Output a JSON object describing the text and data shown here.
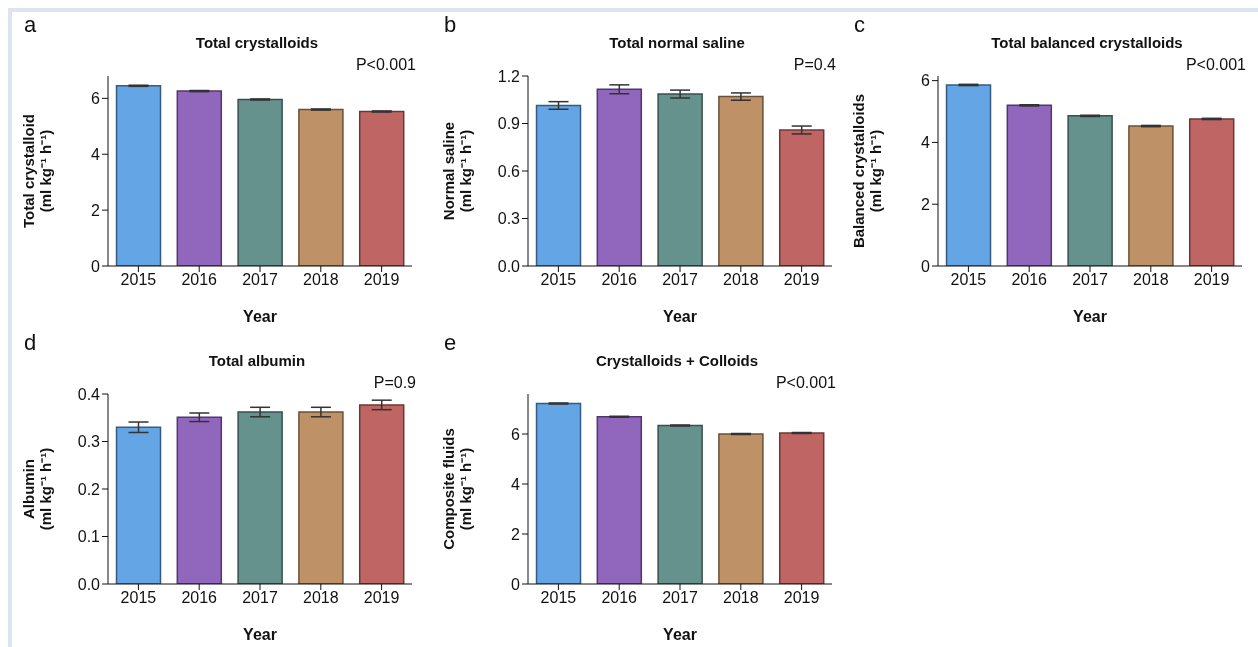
{
  "chart_data": [
    {
      "type": "bar",
      "title": "Total crystalloids",
      "xlabel": "Year",
      "ylabel": "Total crystalloid\n(ml kg⁻¹ h⁻¹)",
      "annotations": [
        "a",
        "P<0.001"
      ],
      "categories": [
        "2015",
        "2016",
        "2017",
        "2018",
        "2019"
      ],
      "values": [
        6.45,
        6.26,
        5.96,
        5.6,
        5.53
      ],
      "errors": [
        0.02,
        0.02,
        0.02,
        0.02,
        0.02
      ],
      "colors": [
        "#64a5e5",
        "#9166bd",
        "#65928c",
        "#bf9166",
        "#bf6564"
      ],
      "ylim": [
        0,
        6.8
      ],
      "yticks": [
        0,
        2,
        4,
        6
      ]
    },
    {
      "type": "bar",
      "title": "Total normal saline",
      "xlabel": "Year",
      "ylabel": "Normal saline\n(ml kg⁻¹ h⁻¹)",
      "annotations": [
        "b",
        "P=0.4"
      ],
      "categories": [
        "2015",
        "2016",
        "2017",
        "2018",
        "2019"
      ],
      "values": [
        1.014,
        1.116,
        1.086,
        1.07,
        0.859
      ],
      "errors": [
        0.024,
        0.028,
        0.025,
        0.023,
        0.025
      ],
      "colors": [
        "#64a5e5",
        "#9166bd",
        "#65928c",
        "#bf9166",
        "#bf6564"
      ],
      "ylim": [
        0,
        1.2
      ],
      "yticks": [
        {
          "value": 0,
          "label": "0.0"
        },
        0.3,
        0.6,
        0.9,
        1.2
      ]
    },
    {
      "type": "bar",
      "title": "Total balanced crystalloids",
      "xlabel": "Year",
      "ylabel": "Balanced crystalloids\n(ml kg⁻¹ h⁻¹)",
      "annotations": [
        "c",
        "P<0.001"
      ],
      "categories": [
        "2015",
        "2016",
        "2017",
        "2018",
        "2019"
      ],
      "values": [
        5.86,
        5.2,
        4.86,
        4.53,
        4.76
      ],
      "errors": [
        0.02,
        0.02,
        0.02,
        0.02,
        0.02
      ],
      "colors": [
        "#64a5e5",
        "#9166bd",
        "#65928c",
        "#bf9166",
        "#bf6564"
      ],
      "ylim": [
        0,
        6.15
      ],
      "yticks": [
        0,
        2,
        4,
        6
      ]
    },
    {
      "type": "bar",
      "title": "Total albumin",
      "xlabel": "Year",
      "ylabel": "Albumin\n(ml kg⁻¹ h⁻¹)",
      "annotations": [
        "d",
        "P=0.9"
      ],
      "categories": [
        "2015",
        "2016",
        "2017",
        "2018",
        "2019"
      ],
      "values": [
        0.33,
        0.351,
        0.362,
        0.362,
        0.377
      ],
      "errors": [
        0.011,
        0.009,
        0.01,
        0.01,
        0.01
      ],
      "colors": [
        "#64a5e5",
        "#9166bd",
        "#65928c",
        "#bf9166",
        "#bf6564"
      ],
      "ylim": [
        0,
        0.4
      ],
      "yticks": [
        {
          "value": 0,
          "label": "0.0"
        },
        0.1,
        0.2,
        0.3,
        0.4
      ]
    },
    {
      "type": "bar",
      "title": "Crystalloids + Colloids",
      "xlabel": "Year",
      "ylabel": "Composite fluids\n(ml kg⁻¹ h⁻¹)",
      "annotations": [
        "e",
        "P<0.001"
      ],
      "categories": [
        "2015",
        "2016",
        "2017",
        "2018",
        "2019"
      ],
      "values": [
        7.22,
        6.69,
        6.34,
        6.0,
        6.04
      ],
      "errors": [
        0.02,
        0.02,
        0.02,
        0.02,
        0.02
      ],
      "colors": [
        "#64a5e5",
        "#9166bd",
        "#65928c",
        "#bf9166",
        "#bf6564"
      ],
      "ylim": [
        0,
        7.6
      ],
      "yticks": [
        0,
        2,
        4,
        6
      ]
    }
  ]
}
